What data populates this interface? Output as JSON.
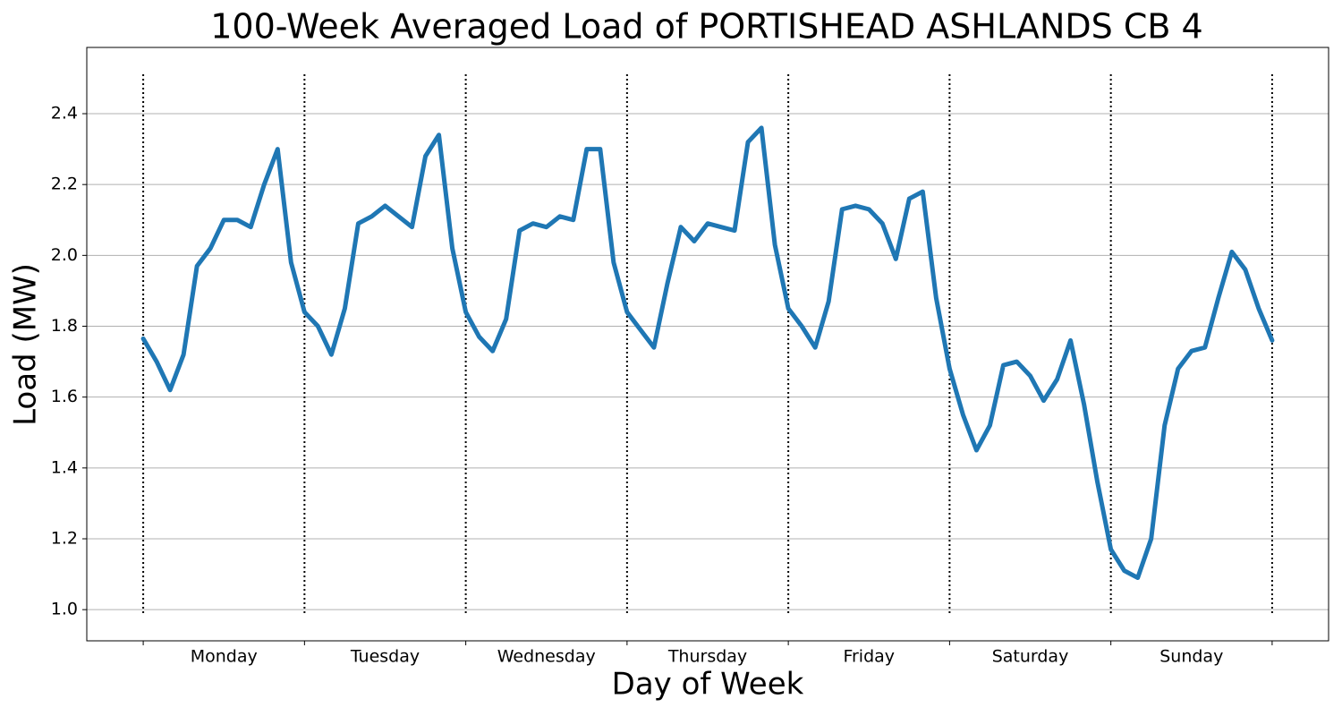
{
  "chart_data": {
    "type": "line",
    "title": "100-Week Averaged Load of PORTISHEAD ASHLANDS CB 4",
    "x_label": "Day of Week",
    "y_label": "Load (MW)",
    "day_labels": [
      "Monday",
      "Tuesday",
      "Wednesday",
      "Thursday",
      "Friday",
      "Saturday",
      "Sunday"
    ],
    "x": [
      0,
      2,
      4,
      6,
      8,
      10,
      12,
      14,
      16,
      18,
      20,
      22,
      24,
      26,
      28,
      30,
      32,
      34,
      36,
      38,
      40,
      42,
      44,
      46,
      48,
      50,
      52,
      54,
      56,
      58,
      60,
      62,
      64,
      66,
      68,
      70,
      72,
      74,
      76,
      78,
      80,
      82,
      84,
      86,
      88,
      90,
      92,
      94,
      96,
      98,
      100,
      102,
      104,
      106,
      108,
      110,
      112,
      114,
      116,
      118,
      120,
      122,
      124,
      126,
      128,
      130,
      132,
      134,
      136,
      138,
      140,
      142,
      144,
      146,
      148,
      150,
      152,
      154,
      156,
      158,
      160,
      162,
      164,
      166,
      168
    ],
    "series": [
      {
        "name": "Load",
        "color": "#1f77b4",
        "values": [
          1.765,
          1.7,
          1.62,
          1.72,
          1.97,
          2.02,
          2.1,
          2.1,
          2.08,
          2.2,
          2.3,
          1.98,
          1.84,
          1.8,
          1.72,
          1.85,
          2.09,
          2.11,
          2.14,
          2.11,
          2.08,
          2.28,
          2.34,
          2.02,
          1.84,
          1.77,
          1.73,
          1.82,
          2.07,
          2.09,
          2.08,
          2.11,
          2.1,
          2.3,
          2.3,
          1.98,
          1.84,
          1.79,
          1.74,
          1.92,
          2.08,
          2.04,
          2.09,
          2.08,
          2.07,
          2.32,
          2.36,
          2.03,
          1.85,
          1.8,
          1.74,
          1.87,
          2.13,
          2.14,
          2.13,
          2.09,
          1.99,
          2.16,
          2.18,
          1.88,
          1.68,
          1.55,
          1.45,
          1.52,
          1.69,
          1.7,
          1.66,
          1.59,
          1.65,
          1.76,
          1.58,
          1.36,
          1.17,
          1.11,
          1.09,
          1.2,
          1.52,
          1.68,
          1.73,
          1.74,
          1.88,
          2.01,
          1.96,
          1.85,
          1.76
        ]
      }
    ],
    "xlim": [
      -8.4,
      176.4
    ],
    "xticks": [
      0,
      24,
      48,
      72,
      96,
      120,
      144,
      168
    ],
    "ylim": [
      0.912,
      2.587
    ],
    "yticks": [
      {
        "value": 1.0,
        "label": "1.0"
      },
      {
        "value": 1.2,
        "label": "1.2"
      },
      {
        "value": 1.4,
        "label": "1.4"
      },
      {
        "value": 1.6,
        "label": "1.6"
      },
      {
        "value": 1.8,
        "label": "1.8"
      },
      {
        "value": 2.0,
        "label": "2.0"
      },
      {
        "value": 2.2,
        "label": "2.2"
      },
      {
        "value": 2.4,
        "label": "2.4"
      }
    ],
    "grid": true
  }
}
